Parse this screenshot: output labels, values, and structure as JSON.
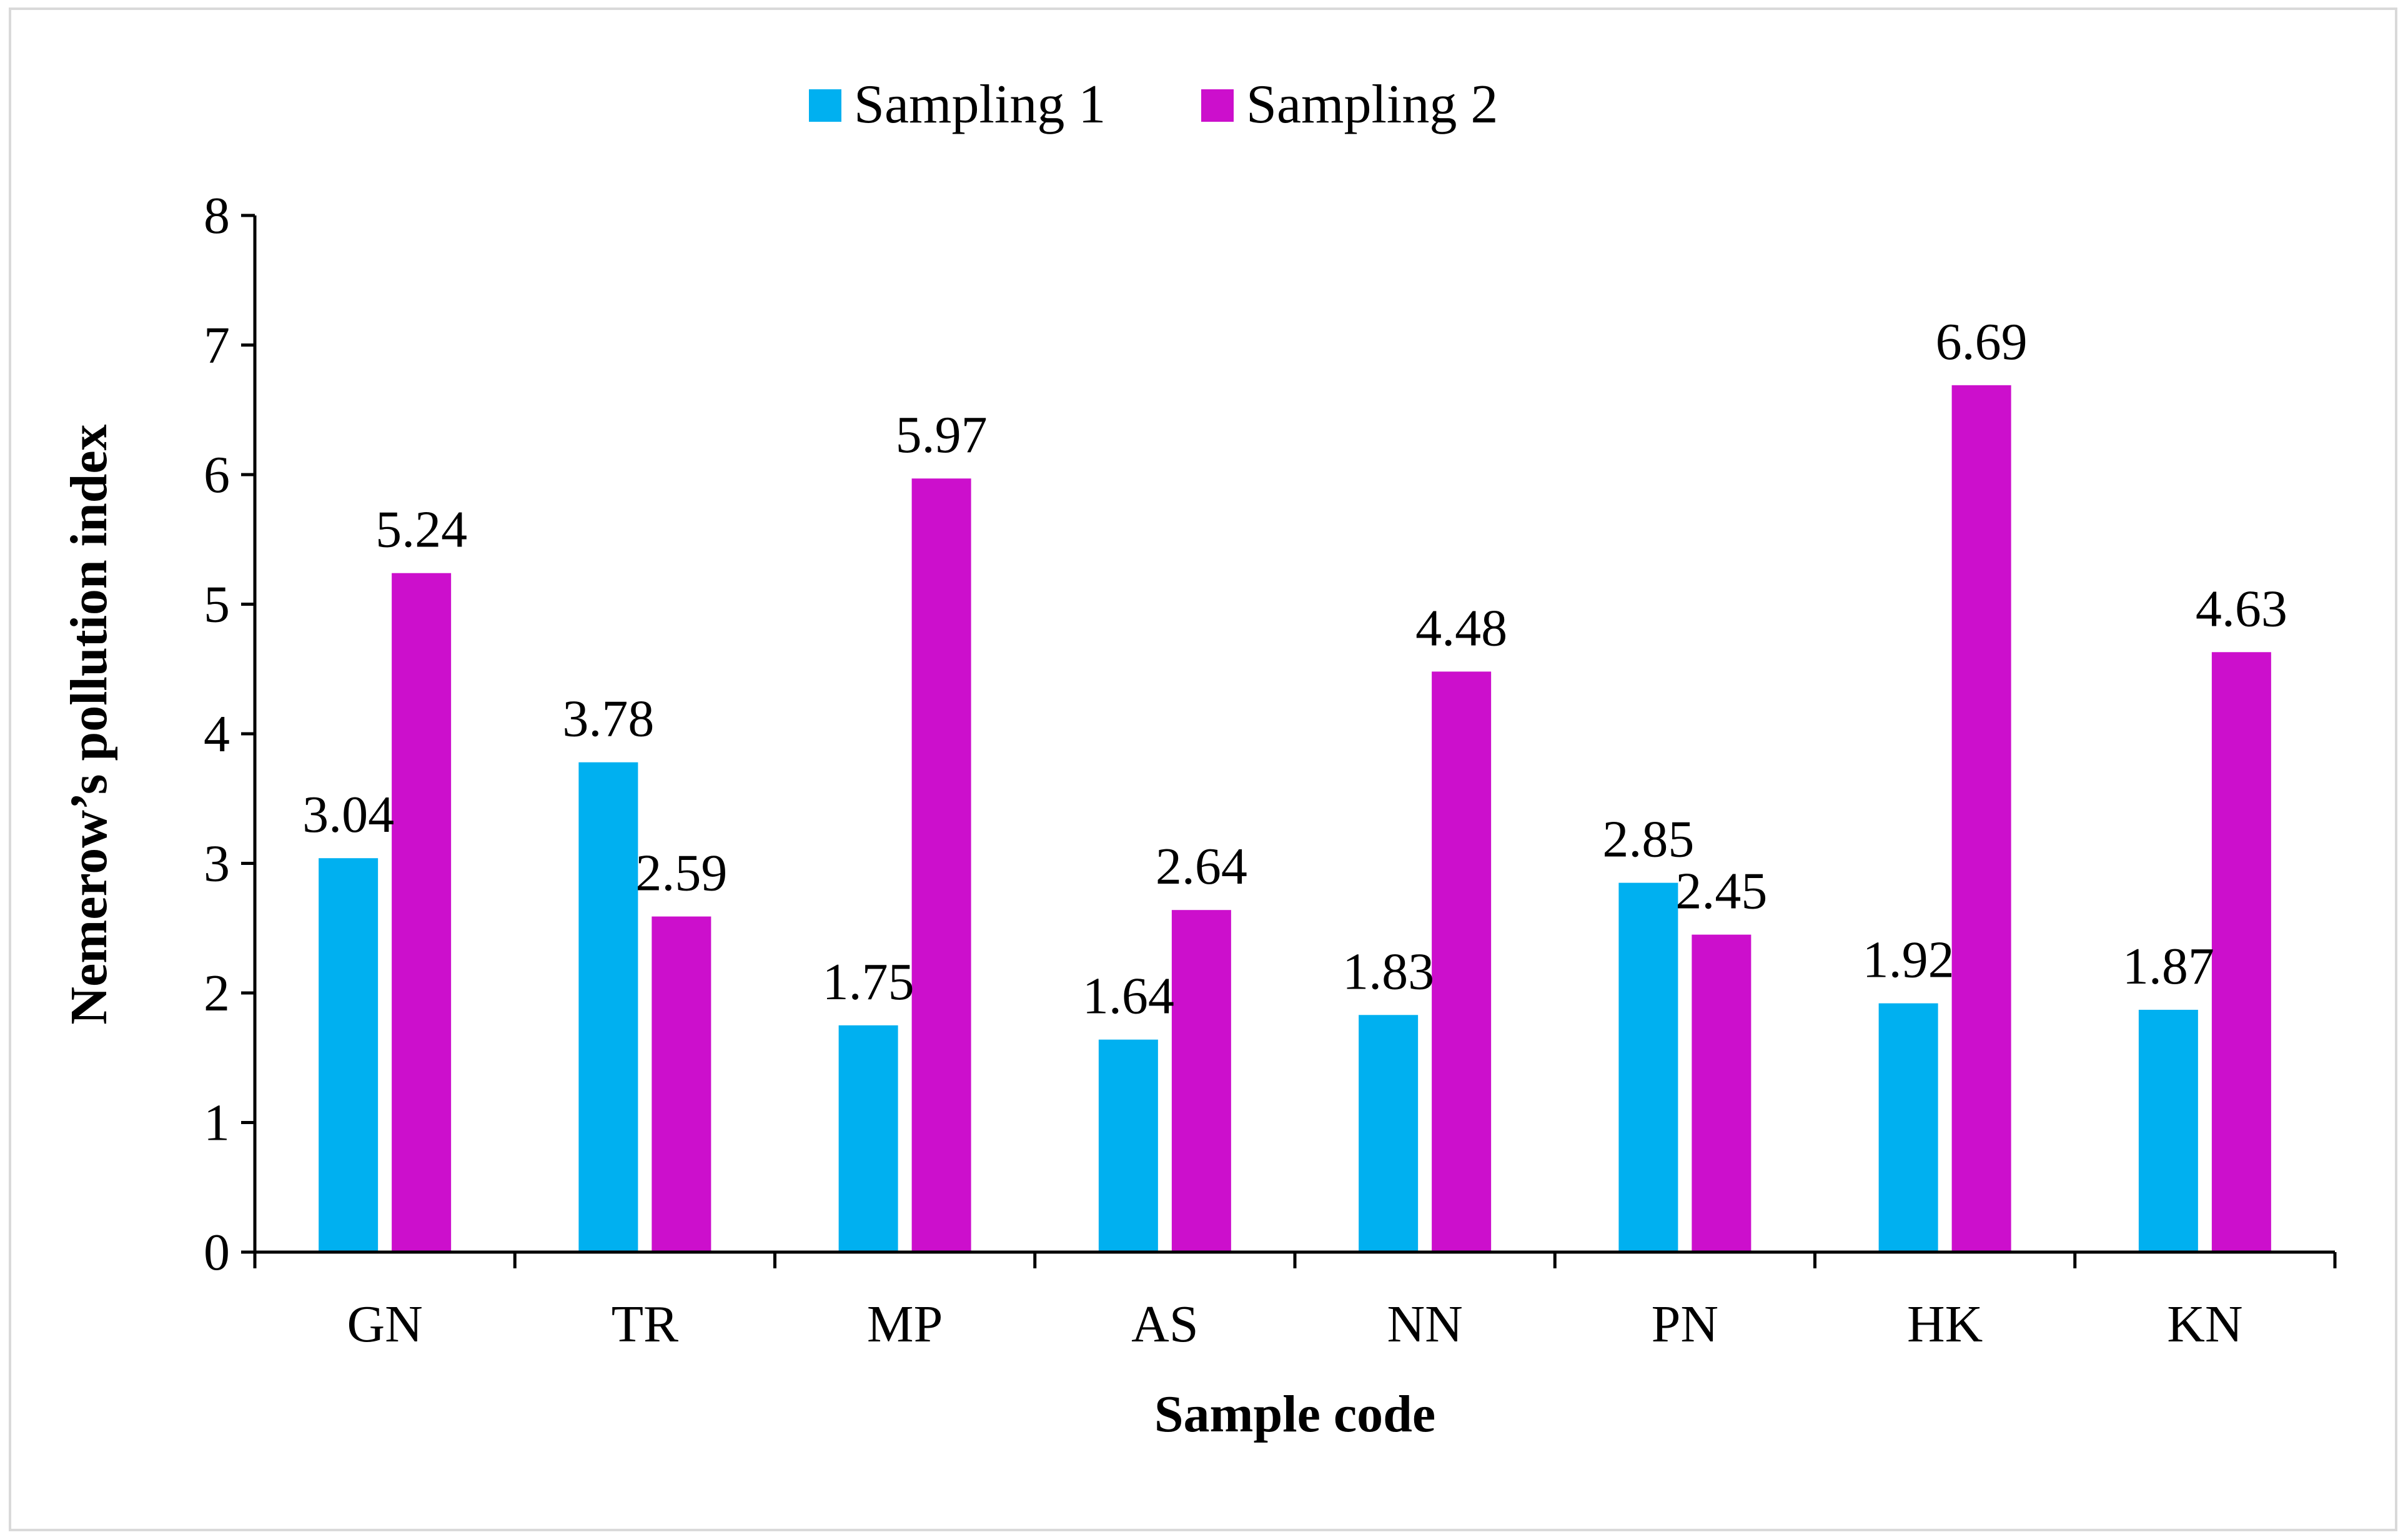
{
  "chart_data": {
    "type": "bar",
    "title": "",
    "xlabel": "Sample code",
    "ylabel": "Nemerow’s pollution index",
    "categories": [
      "GN",
      "TR",
      "MP",
      "AS",
      "NN",
      "PN",
      "HK",
      "KN"
    ],
    "series": [
      {
        "name": "Sampling 1",
        "color": "#00b0f0",
        "values": [
          3.04,
          3.78,
          1.75,
          1.64,
          1.83,
          2.85,
          1.92,
          1.87
        ]
      },
      {
        "name": "Sampling 2",
        "color": "#cc0fcc",
        "values": [
          5.24,
          2.59,
          5.97,
          2.64,
          4.48,
          2.45,
          6.69,
          4.63
        ]
      }
    ],
    "data_labels": [
      [
        "3.04",
        "3.78",
        "1.75",
        "1.64",
        "1.83",
        "2.85",
        "1.92",
        "1.87"
      ],
      [
        "5.24",
        "2.59",
        "5.97",
        "2.64",
        "4.48",
        "2.45",
        "6.69",
        "4.63"
      ]
    ],
    "ylim": [
      0,
      8
    ],
    "yticks": [
      "0",
      "1",
      "2",
      "3",
      "4",
      "5",
      "6",
      "7",
      "8"
    ],
    "grid": false,
    "legend_position": "top-center"
  }
}
